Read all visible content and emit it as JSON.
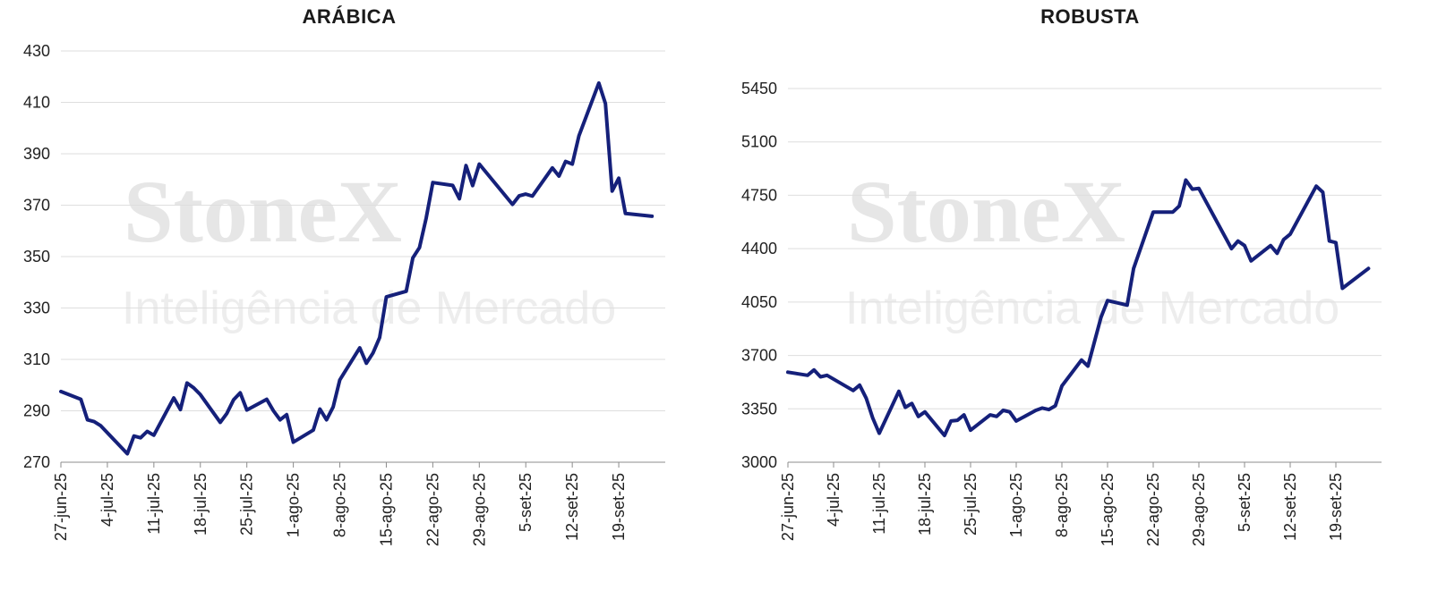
{
  "watermark": {
    "brand": "StoneX",
    "tagline": "Inteligência de Mercado"
  },
  "chart_data": [
    {
      "type": "line",
      "title": "ARÁBICA",
      "xlabel": "",
      "ylabel": "",
      "ylim": [
        270,
        430
      ],
      "yticks": [
        270,
        290,
        310,
        330,
        350,
        370,
        390,
        410,
        430
      ],
      "xlim": [
        "2025-06-27",
        "2025-09-26"
      ],
      "xticks": [
        {
          "date": "2025-06-27",
          "label": "27-jun-25"
        },
        {
          "date": "2025-07-04",
          "label": "4-jul-25"
        },
        {
          "date": "2025-07-11",
          "label": "11-jul-25"
        },
        {
          "date": "2025-07-18",
          "label": "18-jul-25"
        },
        {
          "date": "2025-07-25",
          "label": "25-jul-25"
        },
        {
          "date": "2025-08-01",
          "label": "1-ago-25"
        },
        {
          "date": "2025-08-08",
          "label": "8-ago-25"
        },
        {
          "date": "2025-08-15",
          "label": "15-ago-25"
        },
        {
          "date": "2025-08-22",
          "label": "22-ago-25"
        },
        {
          "date": "2025-08-29",
          "label": "29-ago-25"
        },
        {
          "date": "2025-09-05",
          "label": "5-set-25"
        },
        {
          "date": "2025-09-12",
          "label": "12-set-25"
        },
        {
          "date": "2025-09-19",
          "label": "19-set-25"
        }
      ],
      "grid": true,
      "color": "#15207a",
      "series": [
        {
          "points": [
            [
              "2025-06-27",
              297.5
            ],
            [
              "2025-06-30",
              294.5
            ],
            [
              "2025-07-01",
              286.5
            ],
            [
              "2025-07-02",
              285.8
            ],
            [
              "2025-07-03",
              284.2
            ],
            [
              "2025-07-07",
              273.3
            ],
            [
              "2025-07-08",
              280.2
            ],
            [
              "2025-07-09",
              279.5
            ],
            [
              "2025-07-10",
              282.0
            ],
            [
              "2025-07-11",
              280.5
            ],
            [
              "2025-07-14",
              295.0
            ],
            [
              "2025-07-15",
              290.5
            ],
            [
              "2025-07-16",
              300.8
            ],
            [
              "2025-07-17",
              298.9
            ],
            [
              "2025-07-18",
              296.3
            ],
            [
              "2025-07-21",
              285.5
            ],
            [
              "2025-07-22",
              289.0
            ],
            [
              "2025-07-23",
              294.3
            ],
            [
              "2025-07-24",
              297.0
            ],
            [
              "2025-07-25",
              290.3
            ],
            [
              "2025-07-28",
              294.5
            ],
            [
              "2025-07-29",
              290.0
            ],
            [
              "2025-07-30",
              286.5
            ],
            [
              "2025-07-31",
              288.5
            ],
            [
              "2025-08-01",
              277.8
            ],
            [
              "2025-08-04",
              282.5
            ],
            [
              "2025-08-05",
              290.7
            ],
            [
              "2025-08-06",
              286.5
            ],
            [
              "2025-08-07",
              291.5
            ],
            [
              "2025-08-08",
              302.0
            ],
            [
              "2025-08-11",
              314.5
            ],
            [
              "2025-08-12",
              308.5
            ],
            [
              "2025-08-13",
              312.5
            ],
            [
              "2025-08-14",
              318.5
            ],
            [
              "2025-08-15",
              334.3
            ],
            [
              "2025-08-18",
              336.5
            ],
            [
              "2025-08-19",
              349.5
            ],
            [
              "2025-08-20",
              353.5
            ],
            [
              "2025-08-21",
              365.0
            ],
            [
              "2025-08-22",
              378.8
            ],
            [
              "2025-08-25",
              377.7
            ],
            [
              "2025-08-26",
              372.5
            ],
            [
              "2025-08-27",
              385.4
            ],
            [
              "2025-08-28",
              377.6
            ],
            [
              "2025-08-29",
              386.0
            ],
            [
              "2025-09-03",
              370.3
            ],
            [
              "2025-09-04",
              373.6
            ],
            [
              "2025-09-05",
              374.3
            ],
            [
              "2025-09-06",
              373.5
            ],
            [
              "2025-09-09",
              384.5
            ],
            [
              "2025-09-10",
              381.3
            ],
            [
              "2025-09-11",
              387.0
            ],
            [
              "2025-09-12",
              386.0
            ],
            [
              "2025-09-13",
              397.0
            ],
            [
              "2025-09-16",
              417.5
            ],
            [
              "2025-09-17",
              409.5
            ],
            [
              "2025-09-18",
              375.5
            ],
            [
              "2025-09-19",
              380.5
            ],
            [
              "2025-09-20",
              366.8
            ],
            [
              "2025-09-24",
              365.7
            ]
          ]
        }
      ]
    },
    {
      "type": "line",
      "title": "ROBUSTA",
      "xlabel": "",
      "ylabel": "",
      "ylim": [
        3000,
        5450
      ],
      "yticks": [
        3000,
        3350,
        3700,
        4050,
        4400,
        4750,
        5100,
        5450
      ],
      "xlim": [
        "2025-06-27",
        "2025-09-26"
      ],
      "xticks": [
        {
          "date": "2025-06-27",
          "label": "27-jun-25"
        },
        {
          "date": "2025-07-04",
          "label": "4-jul-25"
        },
        {
          "date": "2025-07-11",
          "label": "11-jul-25"
        },
        {
          "date": "2025-07-18",
          "label": "18-jul-25"
        },
        {
          "date": "2025-07-25",
          "label": "25-jul-25"
        },
        {
          "date": "2025-08-01",
          "label": "1-ago-25"
        },
        {
          "date": "2025-08-08",
          "label": "8-ago-25"
        },
        {
          "date": "2025-08-15",
          "label": "15-ago-25"
        },
        {
          "date": "2025-08-22",
          "label": "22-ago-25"
        },
        {
          "date": "2025-08-29",
          "label": "29-ago-25"
        },
        {
          "date": "2025-09-05",
          "label": "5-set-25"
        },
        {
          "date": "2025-09-12",
          "label": "12-set-25"
        },
        {
          "date": "2025-09-19",
          "label": "19-set-25"
        }
      ],
      "grid": true,
      "color": "#15207a",
      "series": [
        {
          "points": [
            [
              "2025-06-27",
              3590
            ],
            [
              "2025-06-30",
              3570
            ],
            [
              "2025-07-01",
              3605
            ],
            [
              "2025-07-02",
              3560
            ],
            [
              "2025-07-03",
              3570
            ],
            [
              "2025-07-07",
              3470
            ],
            [
              "2025-07-08",
              3505
            ],
            [
              "2025-07-09",
              3420
            ],
            [
              "2025-07-10",
              3290
            ],
            [
              "2025-07-11",
              3190
            ],
            [
              "2025-07-14",
              3465
            ],
            [
              "2025-07-15",
              3360
            ],
            [
              "2025-07-16",
              3385
            ],
            [
              "2025-07-17",
              3300
            ],
            [
              "2025-07-18",
              3330
            ],
            [
              "2025-07-21",
              3175
            ],
            [
              "2025-07-22",
              3270
            ],
            [
              "2025-07-23",
              3275
            ],
            [
              "2025-07-24",
              3310
            ],
            [
              "2025-07-25",
              3210
            ],
            [
              "2025-07-28",
              3310
            ],
            [
              "2025-07-29",
              3300
            ],
            [
              "2025-07-30",
              3340
            ],
            [
              "2025-07-31",
              3330
            ],
            [
              "2025-08-01",
              3270
            ],
            [
              "2025-08-04",
              3340
            ],
            [
              "2025-08-05",
              3355
            ],
            [
              "2025-08-06",
              3345
            ],
            [
              "2025-08-07",
              3370
            ],
            [
              "2025-08-08",
              3500
            ],
            [
              "2025-08-11",
              3670
            ],
            [
              "2025-08-12",
              3630
            ],
            [
              "2025-08-13",
              3790
            ],
            [
              "2025-08-14",
              3950
            ],
            [
              "2025-08-15",
              4060
            ],
            [
              "2025-08-18",
              4030
            ],
            [
              "2025-08-19",
              4270
            ],
            [
              "2025-08-22",
              4640
            ],
            [
              "2025-08-25",
              4640
            ],
            [
              "2025-08-26",
              4680
            ],
            [
              "2025-08-27",
              4850
            ],
            [
              "2025-08-28",
              4790
            ],
            [
              "2025-08-29",
              4795
            ],
            [
              "2025-09-03",
              4400
            ],
            [
              "2025-09-04",
              4450
            ],
            [
              "2025-09-05",
              4420
            ],
            [
              "2025-09-06",
              4320
            ],
            [
              "2025-09-09",
              4420
            ],
            [
              "2025-09-10",
              4370
            ],
            [
              "2025-09-11",
              4460
            ],
            [
              "2025-09-12",
              4495
            ],
            [
              "2025-09-16",
              4810
            ],
            [
              "2025-09-17",
              4770
            ],
            [
              "2025-09-18",
              4450
            ],
            [
              "2025-09-19",
              4440
            ],
            [
              "2025-09-20",
              4140
            ],
            [
              "2025-09-24",
              4270
            ]
          ]
        }
      ]
    }
  ]
}
